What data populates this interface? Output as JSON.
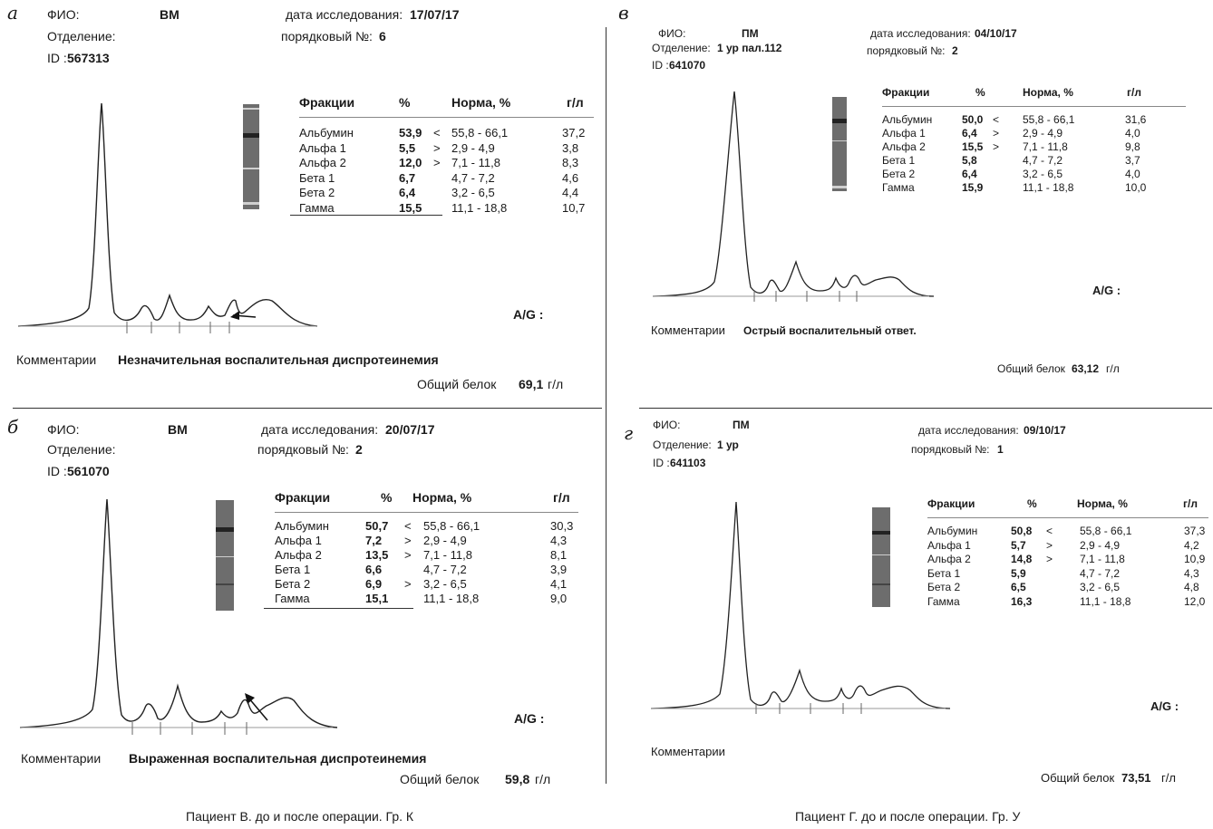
{
  "captions": {
    "left": "Пациент В. до и после операции. Гр. К",
    "right": "Пациент Г. до и после операции. Гр. У"
  },
  "common": {
    "fio_label": "ФИО:",
    "dept_label": "Отделение:",
    "id_label": "ID :",
    "date_label": "дата исследования:",
    "order_label": "порядковый №:",
    "comment_label": "Комментарии",
    "protein_label": "Общий белок",
    "protein_unit": "г/л",
    "ag_label": "A/G :",
    "col_fraction": "Фракции",
    "col_percent": "%",
    "col_norm": "Норма, %",
    "col_gl": "г/л"
  },
  "panels": [
    {
      "letter": "а",
      "fio": "ВМ",
      "department": "",
      "id": "567313",
      "date": "17/07/17",
      "order": "6",
      "comment": "Незначительная воспалительная диспротеинемия",
      "total_protein": "69,1",
      "rows": [
        {
          "name": "Альбумин",
          "pct": "53,9",
          "flag": "<",
          "norm": "55,8 - 66,1",
          "gl": "37,2"
        },
        {
          "name": "Альфа 1",
          "pct": "5,5",
          "flag": ">",
          "norm": "2,9 - 4,9",
          "gl": "3,8"
        },
        {
          "name": "Альфа 2",
          "pct": "12,0",
          "flag": ">",
          "norm": "7,1 - 11,8",
          "gl": "8,3"
        },
        {
          "name": "Бета 1",
          "pct": "6,7",
          "flag": "",
          "norm": "4,7 - 7,2",
          "gl": "4,6"
        },
        {
          "name": "Бета 2",
          "pct": "6,4",
          "flag": "",
          "norm": "3,2 - 6,5",
          "gl": "4,4"
        },
        {
          "name": "Гамма",
          "pct": "15,5",
          "flag": "",
          "norm": "11,1 - 18,8",
          "gl": "10,7"
        }
      ]
    },
    {
      "letter": "б",
      "fio": "ВМ",
      "department": "",
      "id": "561070",
      "date": "20/07/17",
      "order": "2",
      "comment": "Выраженная воспалительная диспротеинемия",
      "total_protein": "59,8",
      "rows": [
        {
          "name": "Альбумин",
          "pct": "50,7",
          "flag": "<",
          "norm": "55,8 - 66,1",
          "gl": "30,3"
        },
        {
          "name": "Альфа 1",
          "pct": "7,2",
          "flag": ">",
          "norm": "2,9 - 4,9",
          "gl": "4,3"
        },
        {
          "name": "Альфа 2",
          "pct": "13,5",
          "flag": ">",
          "norm": "7,1 - 11,8",
          "gl": "8,1"
        },
        {
          "name": "Бета 1",
          "pct": "6,6",
          "flag": "",
          "norm": "4,7 - 7,2",
          "gl": "3,9"
        },
        {
          "name": "Бета 2",
          "pct": "6,9",
          "flag": ">",
          "norm": "3,2 - 6,5",
          "gl": "4,1"
        },
        {
          "name": "Гамма",
          "pct": "15,1",
          "flag": "",
          "norm": "11,1 - 18,8",
          "gl": "9,0"
        }
      ]
    },
    {
      "letter": "в",
      "fio": "ПМ",
      "department": "1 ур пал.112",
      "id": "641070",
      "date": "04/10/17",
      "order": "2",
      "comment": "Острый воспалительный ответ.",
      "total_protein": "63,12",
      "rows": [
        {
          "name": "Альбумин",
          "pct": "50,0",
          "flag": "<",
          "norm": "55,8 - 66,1",
          "gl": "31,6"
        },
        {
          "name": "Альфа 1",
          "pct": "6,4",
          "flag": ">",
          "norm": "2,9 - 4,9",
          "gl": "4,0"
        },
        {
          "name": "Альфа 2",
          "pct": "15,5",
          "flag": ">",
          "norm": "7,1 - 11,8",
          "gl": "9,8"
        },
        {
          "name": "Бета 1",
          "pct": "5,8",
          "flag": "",
          "norm": "4,7 - 7,2",
          "gl": "3,7"
        },
        {
          "name": "Бета 2",
          "pct": "6,4",
          "flag": "",
          "norm": "3,2 - 6,5",
          "gl": "4,0"
        },
        {
          "name": "Гамма",
          "pct": "15,9",
          "flag": "",
          "norm": "11,1 - 18,8",
          "gl": "10,0"
        }
      ]
    },
    {
      "letter": "г",
      "fio": "ПМ",
      "department": "1 ур",
      "id": "641103",
      "date": "09/10/17",
      "order": "1",
      "comment": "",
      "total_protein": "73,51",
      "rows": [
        {
          "name": "Альбумин",
          "pct": "50,8",
          "flag": "<",
          "norm": "55,8 - 66,1",
          "gl": "37,3"
        },
        {
          "name": "Альфа 1",
          "pct": "5,7",
          "flag": ">",
          "norm": "2,9 - 4,9",
          "gl": "4,2"
        },
        {
          "name": "Альфа 2",
          "pct": "14,8",
          "flag": ">",
          "norm": "7,1 - 11,8",
          "gl": "10,9"
        },
        {
          "name": "Бета 1",
          "pct": "5,9",
          "flag": "",
          "norm": "4,7 - 7,2",
          "gl": "4,3"
        },
        {
          "name": "Бета 2",
          "pct": "6,5",
          "flag": "",
          "norm": "3,2 - 6,5",
          "gl": "4,8"
        },
        {
          "name": "Гамма",
          "pct": "16,3",
          "flag": "",
          "norm": "11,1 - 18,8",
          "gl": "12,0"
        }
      ]
    }
  ]
}
